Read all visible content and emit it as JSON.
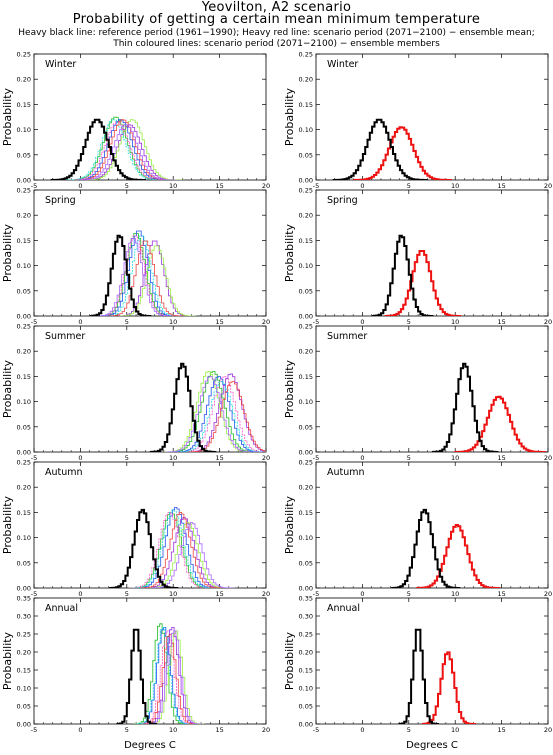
{
  "header": {
    "title": "Yeovilton, A2 scenario",
    "subtitle": "Probability of getting a certain mean minimum temperature",
    "legend_line_1": "Heavy black line: reference period (1961−1990); Heavy red line: scenario period (2071−2100) − ensemble mean;",
    "legend_line_2": "Thin coloured lines: scenario period (2071−2100) − ensemble members"
  },
  "colors": {
    "reference": "#000000",
    "scenario_mean": "#ee1111",
    "members": [
      "#22bb22",
      "#2255ee",
      "#ff55cc",
      "#9933dd",
      "#99ee44",
      "#22dddd",
      "#ee4444",
      "#aa66ff",
      "#33cc66",
      "#444444",
      "#ffaa33"
    ]
  },
  "chart_data": {
    "type": "line",
    "style": "step-histogram",
    "xlabel": "Degrees C",
    "ylabel": "Probability",
    "xlim": [
      -5,
      20
    ],
    "xticks": [
      -5,
      0,
      5,
      10,
      15,
      20
    ],
    "columns": [
      "ensemble members",
      "ensemble mean"
    ],
    "panels": [
      {
        "name": "Winter",
        "ylim": [
          0,
          0.25
        ],
        "yticks": [
          0.0,
          0.05,
          0.1,
          0.15,
          0.2,
          0.25
        ],
        "reference": {
          "mean": 1.8,
          "sd": 1.25,
          "peak": 0.12
        },
        "scenario_mean": {
          "mean": 4.2,
          "sd": 1.3,
          "peak": 0.105
        },
        "members": [
          {
            "mean": 3.8,
            "peak": 0.125
          },
          {
            "mean": 4.3,
            "peak": 0.12
          },
          {
            "mean": 4.0,
            "peak": 0.115
          },
          {
            "mean": 5.3,
            "peak": 0.11
          },
          {
            "mean": 5.6,
            "peak": 0.12
          },
          {
            "mean": 3.6,
            "peak": 0.12
          },
          {
            "mean": 4.6,
            "peak": 0.12
          },
          {
            "mean": 4.9,
            "peak": 0.11
          }
        ]
      },
      {
        "name": "Spring",
        "ylim": [
          0,
          0.25
        ],
        "yticks": [
          0.0,
          0.05,
          0.1,
          0.15,
          0.2,
          0.25
        ],
        "reference": {
          "mean": 4.2,
          "sd": 0.8,
          "peak": 0.16
        },
        "scenario_mean": {
          "mean": 6.4,
          "sd": 1.0,
          "peak": 0.13
        },
        "members": [
          {
            "mean": 6.0,
            "peak": 0.165
          },
          {
            "mean": 6.3,
            "peak": 0.17
          },
          {
            "mean": 5.9,
            "peak": 0.16
          },
          {
            "mean": 8.0,
            "peak": 0.15
          },
          {
            "mean": 8.2,
            "peak": 0.14
          },
          {
            "mean": 6.6,
            "peak": 0.16
          },
          {
            "mean": 7.0,
            "peak": 0.15
          },
          {
            "mean": 5.7,
            "peak": 0.155
          }
        ]
      },
      {
        "name": "Summer",
        "ylim": [
          0,
          0.25
        ],
        "yticks": [
          0.0,
          0.05,
          0.1,
          0.15,
          0.2,
          0.25
        ],
        "reference": {
          "mean": 11.0,
          "sd": 0.85,
          "peak": 0.175
        },
        "scenario_mean": {
          "mean": 14.7,
          "sd": 1.2,
          "peak": 0.11
        },
        "members": [
          {
            "mean": 14.3,
            "peak": 0.16
          },
          {
            "mean": 14.9,
            "peak": 0.15
          },
          {
            "mean": 15.5,
            "peak": 0.15
          },
          {
            "mean": 16.2,
            "peak": 0.155
          },
          {
            "mean": 13.8,
            "peak": 0.16
          },
          {
            "mean": 15.2,
            "peak": 0.14
          },
          {
            "mean": 16.4,
            "peak": 0.14
          },
          {
            "mean": 14.0,
            "peak": 0.15
          }
        ]
      },
      {
        "name": "Autumn",
        "ylim": [
          0,
          0.25
        ],
        "yticks": [
          0.0,
          0.05,
          0.1,
          0.15,
          0.2,
          0.25
        ],
        "reference": {
          "mean": 6.7,
          "sd": 0.9,
          "peak": 0.155
        },
        "scenario_mean": {
          "mean": 10.2,
          "sd": 1.1,
          "peak": 0.125
        },
        "members": [
          {
            "mean": 9.8,
            "peak": 0.15
          },
          {
            "mean": 10.3,
            "peak": 0.16
          },
          {
            "mean": 9.6,
            "peak": 0.15
          },
          {
            "mean": 11.2,
            "peak": 0.14
          },
          {
            "mean": 11.6,
            "peak": 0.13
          },
          {
            "mean": 10.0,
            "peak": 0.155
          },
          {
            "mean": 10.8,
            "peak": 0.15
          },
          {
            "mean": 12.0,
            "peak": 0.13
          }
        ]
      },
      {
        "name": "Annual",
        "ylim": [
          0,
          0.35
        ],
        "yticks": [
          0.0,
          0.05,
          0.1,
          0.15,
          0.2,
          0.25,
          0.3,
          0.35
        ],
        "reference": {
          "mean": 6.0,
          "sd": 0.5,
          "peak": 0.27
        },
        "scenario_mean": {
          "mean": 9.2,
          "sd": 0.7,
          "peak": 0.2
        },
        "members": [
          {
            "mean": 8.6,
            "peak": 0.28
          },
          {
            "mean": 9.0,
            "peak": 0.27
          },
          {
            "mean": 9.4,
            "peak": 0.26
          },
          {
            "mean": 9.9,
            "peak": 0.27
          },
          {
            "mean": 10.3,
            "peak": 0.26
          },
          {
            "mean": 8.9,
            "peak": 0.27
          },
          {
            "mean": 9.6,
            "peak": 0.25
          },
          {
            "mean": 10.1,
            "peak": 0.26
          }
        ]
      }
    ]
  }
}
